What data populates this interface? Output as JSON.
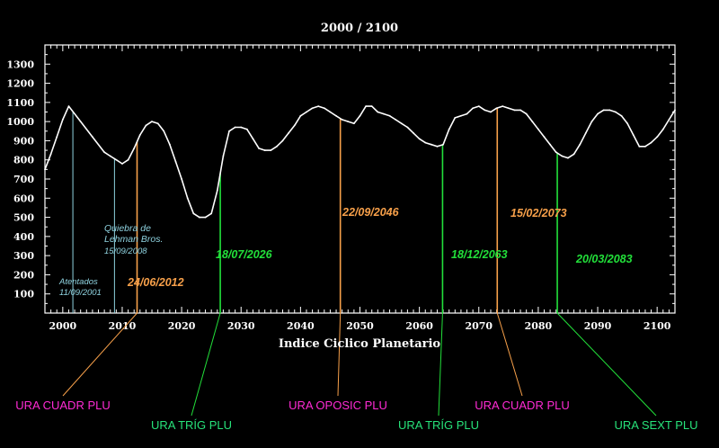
{
  "chart_data": {
    "type": "line",
    "title": "2000  /  2100",
    "xlabel": "Indice Ciclico Planetario",
    "ylabel": "",
    "xlim": [
      1997,
      2103
    ],
    "ylim": [
      0,
      1400
    ],
    "grid": false,
    "x_ticks": [
      2000,
      2010,
      2020,
      2030,
      2040,
      2050,
      2060,
      2070,
      2080,
      2090,
      2100
    ],
    "y_ticks": [
      100,
      200,
      300,
      400,
      500,
      600,
      700,
      800,
      900,
      1000,
      1100,
      1200,
      1300
    ],
    "series": [
      {
        "name": "",
        "color": "#ffffff",
        "x": [
          1997,
          1998,
          1999,
          2000,
          2001,
          2003,
          2005,
          2007,
          2008,
          2009,
          2010,
          2011,
          2012,
          2013,
          2014,
          2015,
          2016,
          2017,
          2018,
          2019,
          2020,
          2021,
          2022,
          2023,
          2024,
          2025,
          2026,
          2027,
          2028,
          2029,
          2030,
          2031,
          2032,
          2033,
          2034,
          2035,
          2036,
          2037,
          2038,
          2039,
          2040,
          2041,
          2042,
          2043,
          2044,
          2045,
          2046,
          2047,
          2048,
          2049,
          2050,
          2051,
          2052,
          2053,
          2054,
          2055,
          2056,
          2057,
          2058,
          2059,
          2060,
          2061,
          2062,
          2063,
          2064,
          2065,
          2066,
          2067,
          2068,
          2069,
          2070,
          2071,
          2072,
          2073,
          2074,
          2075,
          2076,
          2077,
          2078,
          2079,
          2080,
          2081,
          2082,
          2083,
          2084,
          2085,
          2086,
          2087,
          2088,
          2089,
          2090,
          2091,
          2092,
          2093,
          2094,
          2095,
          2096,
          2097,
          2098,
          2099,
          2100,
          2101,
          2102,
          2103
        ],
        "y": [
          750,
          830,
          920,
          1010,
          1080,
          1000,
          920,
          840,
          820,
          800,
          780,
          800,
          860,
          930,
          980,
          1000,
          990,
          950,
          880,
          790,
          700,
          600,
          520,
          500,
          500,
          520,
          640,
          820,
          950,
          970,
          970,
          960,
          910,
          860,
          850,
          850,
          870,
          900,
          940,
          980,
          1030,
          1050,
          1070,
          1080,
          1070,
          1050,
          1030,
          1010,
          1000,
          990,
          1030,
          1080,
          1080,
          1050,
          1040,
          1030,
          1010,
          990,
          970,
          940,
          910,
          890,
          880,
          870,
          880,
          960,
          1020,
          1030,
          1040,
          1070,
          1080,
          1060,
          1050,
          1070,
          1080,
          1070,
          1060,
          1060,
          1040,
          1000,
          960,
          920,
          880,
          840,
          820,
          810,
          830,
          880,
          940,
          1000,
          1040,
          1060,
          1060,
          1050,
          1030,
          990,
          930,
          870,
          870,
          890,
          920,
          960,
          1010,
          1060
        ]
      }
    ],
    "markers": [
      {
        "year": 2001.7,
        "color": "#8fd3e0",
        "label": "Atentados",
        "date": "11/09/2001"
      },
      {
        "year": 2008.7,
        "color": "#8fd3e0",
        "label": "Quiebra de Lehman Bros.",
        "date": "15/09/2008"
      },
      {
        "year": 2012.5,
        "color": "#f7a04a",
        "date": "24/06/2012",
        "aspect": "URA CUADR PLU",
        "aspect_color": "#ff2bd5"
      },
      {
        "year": 2026.5,
        "color": "#22e03a",
        "date": "18/07/2026",
        "aspect": "URA TRÍG PLU",
        "aspect_color": "#27e27a"
      },
      {
        "year": 2046.7,
        "color": "#f7a04a",
        "date": "22/09/2046",
        "aspect": "URA OPOSIC PLU",
        "aspect_color": "#ff2bd5"
      },
      {
        "year": 2063.9,
        "color": "#22e03a",
        "date": "18/12/2063",
        "aspect": "URA TRÍG PLU",
        "aspect_color": "#27e27a"
      },
      {
        "year": 2073.1,
        "color": "#f7a04a",
        "date": "15/02/2073",
        "aspect": "URA CUADR PLU",
        "aspect_color": "#ff2bd5"
      },
      {
        "year": 2083.2,
        "color": "#22e03a",
        "date": "20/03/2083",
        "aspect": "URA SEXT PLU",
        "aspect_color": "#27e27a"
      }
    ]
  }
}
